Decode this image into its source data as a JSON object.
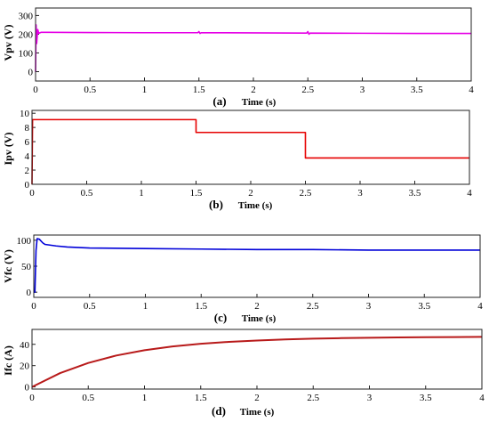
{
  "chart_data": [
    {
      "type": "line",
      "panel_label": "(a)",
      "xlabel": "Time (s)",
      "ylabel": "Vpv (V)",
      "xlim": [
        0,
        4
      ],
      "ylim": [
        -50,
        340
      ],
      "xticks": [
        0,
        0.5,
        1,
        1.5,
        2,
        2.5,
        3,
        3.5,
        4
      ],
      "xtick_labels": [
        "0",
        "0.5",
        "1",
        "1.5",
        "2",
        "2.5",
        "3",
        "3.5",
        "4"
      ],
      "yticks": [
        0,
        100,
        200,
        300
      ],
      "ytick_labels": [
        "0",
        "100",
        "200",
        "300"
      ],
      "color": "#e600e6",
      "series": [
        {
          "x": [
            0,
            0.005,
            0.01,
            0.02,
            0.03,
            0.05,
            0.1,
            0.5,
            1.0,
            1.49,
            1.5,
            1.51,
            1.52,
            2.0,
            2.49,
            2.5,
            2.51,
            2.52,
            3.0,
            3.5,
            4.0
          ],
          "values": [
            0,
            250,
            150,
            225,
            205,
            210,
            210,
            209,
            208,
            208,
            214,
            204,
            208,
            207,
            206,
            214,
            200,
            206,
            205,
            204,
            204
          ]
        }
      ]
    },
    {
      "type": "line",
      "panel_label": "(b)",
      "xlabel": "Time (s)",
      "ylabel": "Ipv (V)",
      "xlim": [
        0,
        4
      ],
      "ylim": [
        0,
        10.4
      ],
      "xticks": [
        0,
        0.5,
        1,
        1.5,
        2,
        2.5,
        3,
        3.5,
        4
      ],
      "xtick_labels": [
        "0",
        "0.5",
        "1",
        "1.5",
        "2",
        "2.5",
        "3",
        "3.5",
        "4"
      ],
      "yticks": [
        0,
        2,
        4,
        6,
        8,
        10
      ],
      "ytick_labels": [
        "0",
        "2",
        "4",
        "6",
        "8",
        "10"
      ],
      "color": "#e60000",
      "series": [
        {
          "x": [
            0,
            0.005,
            1.5,
            1.5,
            2.5,
            2.5,
            4.0
          ],
          "values": [
            0,
            9.1,
            9.1,
            7.3,
            7.3,
            3.7,
            3.7
          ]
        }
      ]
    },
    {
      "type": "line",
      "panel_label": "(c)",
      "xlabel": "Time (s)",
      "ylabel": "Vfc (V)",
      "xlim": [
        0,
        4
      ],
      "ylim": [
        -10,
        110
      ],
      "xticks": [
        0,
        0.5,
        1,
        1.5,
        2,
        2.5,
        3,
        3.5,
        4
      ],
      "xtick_labels": [
        "0",
        "0.5",
        "1",
        "1.5",
        "2",
        "2.5",
        "3",
        "3.5",
        "4"
      ],
      "yticks": [
        0,
        50,
        100
      ],
      "ytick_labels": [
        "0",
        "50",
        "100"
      ],
      "color": "#0000d9",
      "series": [
        {
          "x": [
            0,
            0.01,
            0.02,
            0.03,
            0.05,
            0.08,
            0.1,
            0.2,
            0.3,
            0.5,
            1.0,
            1.5,
            2.0,
            2.5,
            3.0,
            3.5,
            4.0
          ],
          "values": [
            0,
            0,
            80,
            103,
            102,
            95,
            92,
            89,
            87,
            85,
            84,
            83,
            82,
            82,
            81,
            81,
            81
          ]
        }
      ]
    },
    {
      "type": "line",
      "panel_label": "(d)",
      "xlabel": "Time (s)",
      "ylabel": "Ifc (A)",
      "xlim": [
        0,
        4
      ],
      "ylim": [
        -2,
        54
      ],
      "xticks": [
        0,
        0.5,
        1,
        1.5,
        2,
        2.5,
        3,
        3.5,
        4
      ],
      "xtick_labels": [
        "0",
        "0.5",
        "1",
        "1.5",
        "2",
        "2.5",
        "3",
        "3.5",
        "4"
      ],
      "yticks": [
        0,
        20,
        40
      ],
      "ytick_labels": [
        "0",
        "20",
        "40"
      ],
      "color": "#b81a1a",
      "series": [
        {
          "x": [
            0,
            0.25,
            0.5,
            0.75,
            1.0,
            1.25,
            1.5,
            1.75,
            2.0,
            2.25,
            2.5,
            2.75,
            3.0,
            3.25,
            3.5,
            3.75,
            4.0
          ],
          "values": [
            0,
            13,
            22.5,
            29.5,
            34.5,
            38,
            40.5,
            42.3,
            43.6,
            44.6,
            45.3,
            45.8,
            46.2,
            46.5,
            46.7,
            46.8,
            47
          ]
        }
      ]
    }
  ]
}
